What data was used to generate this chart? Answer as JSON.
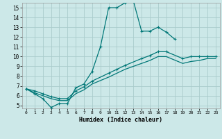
{
  "xlabel": "Humidex (Indice chaleur)",
  "background_color": "#cce8e8",
  "grid_color": "#aacccc",
  "line_color": "#007777",
  "xlim": [
    -0.5,
    23.5
  ],
  "ylim": [
    4.7,
    15.5
  ],
  "yticks": [
    5,
    6,
    7,
    8,
    9,
    10,
    11,
    12,
    13,
    14,
    15
  ],
  "xticks": [
    0,
    1,
    2,
    3,
    4,
    5,
    6,
    7,
    8,
    9,
    10,
    11,
    12,
    13,
    14,
    15,
    16,
    17,
    18,
    19,
    20,
    21,
    22,
    23
  ],
  "line1_x": [
    0,
    1,
    2,
    3,
    4,
    5,
    6,
    7,
    8,
    9,
    10,
    11,
    12,
    13,
    14,
    15,
    16,
    17,
    18
  ],
  "line1_y": [
    6.7,
    6.2,
    5.7,
    4.8,
    5.2,
    5.2,
    6.8,
    7.2,
    8.5,
    11.0,
    15.0,
    15.0,
    15.5,
    15.7,
    12.6,
    12.6,
    13.0,
    12.5,
    11.8
  ],
  "line2_x": [
    0,
    1,
    2,
    3,
    4,
    5,
    6,
    7,
    8,
    10,
    11,
    12,
    14,
    15,
    16,
    17,
    19,
    20,
    21,
    22,
    23
  ],
  "line2_y": [
    6.7,
    6.5,
    6.2,
    5.9,
    5.7,
    5.7,
    6.5,
    6.9,
    7.5,
    8.3,
    8.7,
    9.1,
    9.8,
    10.1,
    10.5,
    10.5,
    9.8,
    10.0,
    10.0,
    10.0,
    10.0
  ],
  "line3_x": [
    0,
    1,
    2,
    3,
    4,
    5,
    6,
    7,
    8,
    10,
    11,
    12,
    14,
    15,
    16,
    17,
    19,
    20,
    21,
    22,
    23
  ],
  "line3_y": [
    6.7,
    6.3,
    6.0,
    5.7,
    5.5,
    5.5,
    6.2,
    6.6,
    7.2,
    7.9,
    8.3,
    8.7,
    9.3,
    9.6,
    10.0,
    10.0,
    9.3,
    9.5,
    9.6,
    9.8,
    9.8
  ]
}
